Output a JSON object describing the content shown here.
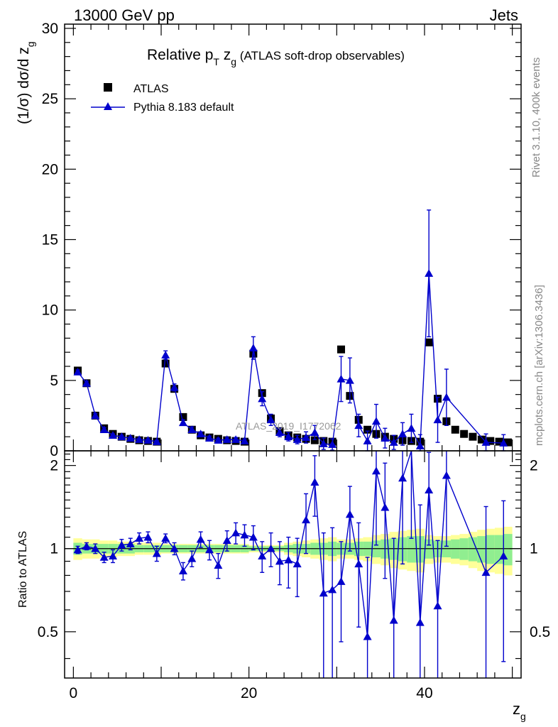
{
  "header": {
    "energy_label": "13000 GeV pp",
    "category_label": "Jets"
  },
  "side_labels": {
    "rivet": "Rivet 3.1.10,  400k events",
    "mcplots": "mcplots.cern.ch [arXiv:1306.3436]"
  },
  "chart_data": [
    {
      "type": "scatter",
      "title": "Relative pT zg (ATLAS soft-drop observables)",
      "title_main": "Relative p",
      "title_sub_T": "T",
      "title_z": " z",
      "title_sub_g": "g",
      "title_rest": " (ATLAS soft-drop observables)",
      "ylabel": "(1/σ) dσ/d z",
      "ylabel_sub": "g",
      "xlabel": "z",
      "xlabel_sub": "g",
      "watermark": "ATLAS_2019_I1772062",
      "xlim": [
        -1,
        51
      ],
      "ylim": [
        0,
        30.3
      ],
      "xticks": [
        0,
        20,
        40
      ],
      "yticks": [
        0,
        5,
        10,
        15,
        20,
        25,
        30
      ],
      "legend_position": "top-left",
      "colors": {
        "data": "#000000",
        "mc": "#0000cc"
      },
      "series": [
        {
          "name": "ATLAS",
          "marker": "square",
          "x": [
            0.5,
            1.5,
            2.5,
            3.5,
            4.5,
            5.5,
            6.5,
            7.5,
            8.5,
            9.5,
            10.5,
            11.5,
            12.5,
            13.5,
            14.5,
            15.5,
            16.5,
            17.5,
            18.5,
            19.5,
            20.5,
            21.5,
            22.5,
            23.5,
            24.5,
            25.5,
            26.5,
            27.5,
            28.5,
            29.5,
            30.5,
            31.5,
            32.5,
            33.5,
            34.5,
            35.5,
            36.5,
            37.5,
            38.5,
            39.5,
            40.5,
            41.5,
            42.5,
            43.5,
            44.5,
            45.5,
            46.5,
            47.5,
            48.5,
            49.5
          ],
          "y": [
            5.7,
            4.8,
            2.5,
            1.6,
            1.2,
            1.0,
            0.85,
            0.75,
            0.7,
            0.65,
            6.2,
            4.4,
            2.4,
            1.5,
            1.1,
            0.95,
            0.85,
            0.75,
            0.7,
            0.65,
            6.9,
            4.1,
            2.3,
            1.4,
            1.1,
            0.95,
            0.85,
            0.75,
            0.7,
            0.65,
            7.2,
            3.9,
            2.2,
            1.5,
            1.2,
            1.0,
            0.85,
            0.75,
            0.7,
            0.65,
            7.7,
            3.7,
            2.1,
            1.5,
            1.2,
            1.0,
            0.8,
            0.7,
            0.65,
            0.6
          ]
        },
        {
          "name": "Pythia 8.183 default",
          "marker": "triangle",
          "x": [
            0.5,
            1.5,
            2.5,
            3.5,
            4.5,
            5.5,
            6.5,
            7.5,
            8.5,
            9.5,
            10.5,
            11.5,
            12.5,
            13.5,
            14.5,
            15.5,
            16.5,
            17.5,
            18.5,
            19.5,
            20.5,
            21.5,
            22.5,
            23.5,
            24.5,
            25.5,
            26.5,
            27.5,
            28.5,
            29.5,
            30.5,
            31.5,
            32.5,
            33.5,
            34.5,
            35.5,
            36.5,
            37.5,
            38.5,
            39.5,
            40.5,
            41.5,
            42.5,
            47,
            49
          ],
          "y": [
            5.6,
            4.8,
            2.5,
            1.5,
            1.1,
            1.0,
            0.9,
            0.8,
            0.75,
            0.65,
            6.8,
            4.5,
            2.0,
            1.5,
            1.2,
            0.9,
            0.75,
            0.8,
            0.8,
            0.7,
            7.3,
            3.7,
            2.2,
            1.3,
            1.0,
            0.8,
            0.95,
            1.3,
            0.5,
            0.45,
            5.1,
            5.0,
            1.8,
            0.7,
            2.1,
            0.9,
            0.6,
            1.2,
            1.6,
            0.35,
            12.6,
            2.2,
            3.8,
            0.6,
            0.55
          ],
          "err": [
            0.15,
            0.15,
            0.15,
            0.15,
            0.1,
            0.1,
            0.1,
            0.1,
            0.1,
            0.1,
            0.3,
            0.25,
            0.2,
            0.2,
            0.15,
            0.15,
            0.15,
            0.15,
            0.15,
            0.15,
            0.8,
            0.5,
            0.4,
            0.3,
            0.3,
            0.3,
            0.4,
            0.5,
            0.4,
            0.4,
            1.6,
            1.6,
            0.8,
            0.7,
            1.2,
            0.7,
            0.5,
            0.8,
            1.0,
            0.8,
            4.5,
            1.6,
            2.0,
            0.6,
            0.6
          ]
        }
      ]
    },
    {
      "type": "scatter",
      "ylabel": "Ratio to ATLAS",
      "ylim": [
        0.34,
        2.26
      ],
      "yticks": [
        0.5,
        1,
        2
      ],
      "yticklabels": [
        "0.5",
        "1",
        "2"
      ],
      "bands": {
        "x_edges": [
          0,
          1,
          2,
          3,
          4,
          5,
          6,
          7,
          8,
          9,
          10,
          11,
          12,
          13,
          14,
          15,
          16,
          17,
          18,
          19,
          20,
          21,
          22,
          23,
          24,
          25,
          26,
          27,
          28,
          29,
          30,
          31,
          32,
          33,
          34,
          35,
          36,
          37,
          38,
          39,
          40,
          41,
          42,
          43,
          44,
          45,
          46,
          47,
          48,
          49,
          50
        ],
        "inner": [
          0.05,
          0.04,
          0.04,
          0.04,
          0.04,
          0.04,
          0.04,
          0.03,
          0.03,
          0.03,
          0.03,
          0.03,
          0.03,
          0.03,
          0.03,
          0.03,
          0.03,
          0.03,
          0.03,
          0.03,
          0.02,
          0.02,
          0.02,
          0.02,
          0.03,
          0.04,
          0.04,
          0.05,
          0.05,
          0.06,
          0.05,
          0.05,
          0.06,
          0.06,
          0.07,
          0.08,
          0.09,
          0.1,
          0.11,
          0.11,
          0.08,
          0.07,
          0.07,
          0.08,
          0.09,
          0.1,
          0.11,
          0.12,
          0.12,
          0.13
        ],
        "outer": [
          0.09,
          0.08,
          0.08,
          0.07,
          0.07,
          0.06,
          0.06,
          0.05,
          0.05,
          0.05,
          0.04,
          0.04,
          0.04,
          0.04,
          0.04,
          0.04,
          0.04,
          0.04,
          0.04,
          0.04,
          0.03,
          0.03,
          0.03,
          0.03,
          0.05,
          0.06,
          0.07,
          0.08,
          0.09,
          0.1,
          0.08,
          0.08,
          0.09,
          0.1,
          0.12,
          0.13,
          0.15,
          0.16,
          0.17,
          0.18,
          0.12,
          0.11,
          0.11,
          0.12,
          0.13,
          0.15,
          0.17,
          0.18,
          0.19,
          0.2
        ],
        "colors": {
          "inner": "#90ee90",
          "outer": "#ffff99"
        }
      },
      "series": [
        {
          "name": "Pythia 8.183 default / ATLAS",
          "x": [
            0.5,
            1.5,
            2.5,
            3.5,
            4.5,
            5.5,
            6.5,
            7.5,
            8.5,
            9.5,
            10.5,
            11.5,
            12.5,
            13.5,
            14.5,
            15.5,
            16.5,
            17.5,
            18.5,
            19.5,
            20.5,
            21.5,
            22.5,
            23.5,
            24.5,
            25.5,
            26.5,
            27.5,
            28.5,
            29.5,
            30.5,
            31.5,
            32.5,
            33.5,
            34.5,
            35.5,
            36.5,
            37.5,
            38.5,
            39.5,
            40.5,
            41.5,
            42.5,
            47,
            49
          ],
          "y": [
            0.99,
            1.02,
            1.0,
            0.93,
            0.94,
            1.03,
            1.04,
            1.09,
            1.1,
            0.96,
            1.09,
            1.0,
            0.83,
            0.92,
            1.08,
            0.99,
            0.87,
            1.07,
            1.14,
            1.12,
            1.1,
            0.94,
            1.0,
            0.9,
            0.91,
            0.88,
            1.27,
            1.74,
            0.69,
            0.71,
            0.76,
            1.33,
            0.88,
            0.48,
            1.91,
            1.41,
            0.55,
            1.8,
            2.29,
            0.54,
            1.63,
            0.62,
            1.84,
            0.82,
            0.94
          ],
          "err": [
            0.03,
            0.03,
            0.04,
            0.04,
            0.05,
            0.05,
            0.05,
            0.05,
            0.05,
            0.06,
            0.04,
            0.05,
            0.06,
            0.06,
            0.07,
            0.08,
            0.09,
            0.09,
            0.1,
            0.1,
            0.11,
            0.12,
            0.14,
            0.16,
            0.19,
            0.21,
            0.31,
            0.43,
            0.45,
            0.48,
            0.3,
            0.35,
            0.36,
            0.45,
            0.88,
            0.63,
            0.54,
            0.92,
            1.2,
            0.9,
            0.6,
            0.45,
            0.82,
            0.6,
            0.55
          ]
        }
      ]
    }
  ]
}
